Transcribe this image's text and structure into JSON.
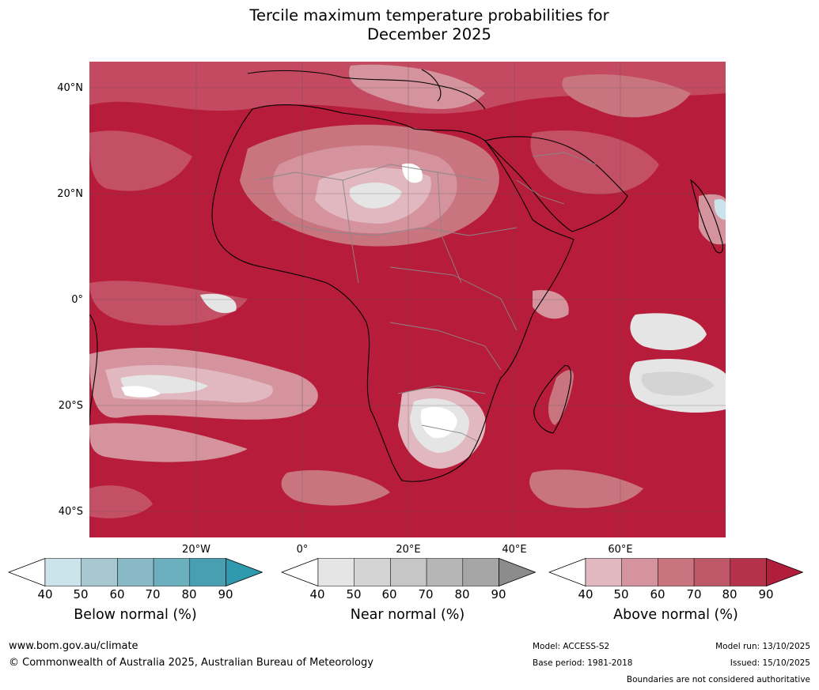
{
  "title": {
    "line1": "Tercile maximum temperature probabilities for",
    "line2": "December 2025"
  },
  "map": {
    "lat_labels": [
      "40°N",
      "20°N",
      "0°",
      "20°S",
      "40°S"
    ],
    "lon_labels": [
      "20°W",
      "0°",
      "20°E",
      "40°E",
      "60°E"
    ],
    "dominant_color": "#b81c3b"
  },
  "legends": [
    {
      "name": "Below normal (%)",
      "ticks": [
        "40",
        "50",
        "60",
        "70",
        "80",
        "90"
      ],
      "colors": [
        "#ffffff",
        "#cbe3ea",
        "#a7c8d0",
        "#8ab9c6",
        "#6cafbf",
        "#479fb1",
        "#2f99ad"
      ]
    },
    {
      "name": "Near normal (%)",
      "ticks": [
        "40",
        "50",
        "60",
        "70",
        "80",
        "90"
      ],
      "colors": [
        "#ffffff",
        "#e5e5e5",
        "#d4d4d4",
        "#c6c6c6",
        "#b6b6b6",
        "#a5a5a5",
        "#8c8c8c"
      ]
    },
    {
      "name": "Above normal (%)",
      "ticks": [
        "40",
        "50",
        "60",
        "70",
        "80",
        "90"
      ],
      "colors": [
        "#ffffff",
        "#e1b8bf",
        "#d4939d",
        "#c97580",
        "#be5768",
        "#b6314a",
        "#b11d3a"
      ]
    }
  ],
  "footer": {
    "website": "www.bom.gov.au/climate",
    "copyright": "© Commonwealth of Australia 2025, Australian Bureau of Meteorology",
    "model": "Model: ACCESS-S2",
    "base_period": "Base period: 1981-2018",
    "model_run": "Model run: 13/10/2025",
    "issued": "Issued: 15/10/2025",
    "disclaimer": "Boundaries are not considered authoritative"
  }
}
